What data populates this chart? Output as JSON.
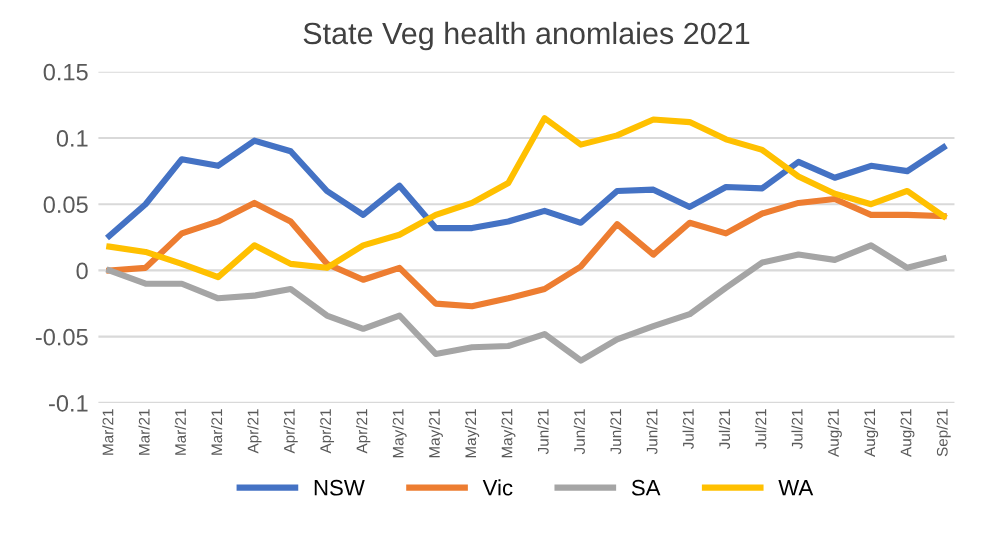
{
  "chart_data": {
    "type": "line",
    "title": "State Veg health anomlaies 2021",
    "categories": [
      "Mar/21",
      "Mar/21",
      "Mar/21",
      "Mar/21",
      "Apr/21",
      "Apr/21",
      "Apr/21",
      "Apr/21",
      "May/21",
      "May/21",
      "May/21",
      "May/21",
      "Jun/21",
      "Jun/21",
      "Jun/21",
      "Jun/21",
      "Jul/21",
      "Jul/21",
      "Jul/21",
      "Jul/21",
      "Aug/21",
      "Aug/21",
      "Aug/21",
      "Sep/21"
    ],
    "series": [
      {
        "name": "NSW",
        "color": "#4472c4",
        "values": [
          0.026,
          0.05,
          0.084,
          0.079,
          0.098,
          0.09,
          0.06,
          0.042,
          0.064,
          0.032,
          0.032,
          0.037,
          0.045,
          0.036,
          0.06,
          0.061,
          0.048,
          0.063,
          0.062,
          0.082,
          0.07,
          0.079,
          0.075,
          0.093
        ]
      },
      {
        "name": "Vic",
        "color": "#ed7d31",
        "values": [
          0.0,
          0.002,
          0.028,
          0.037,
          0.051,
          0.037,
          0.005,
          -0.007,
          0.002,
          -0.025,
          -0.027,
          -0.021,
          -0.014,
          0.003,
          0.035,
          0.012,
          0.036,
          0.028,
          0.043,
          0.051,
          0.054,
          0.042,
          0.042,
          0.041
        ]
      },
      {
        "name": "SA",
        "color": "#a5a5a5",
        "values": [
          0.0,
          -0.01,
          -0.01,
          -0.021,
          -0.019,
          -0.014,
          -0.034,
          -0.044,
          -0.034,
          -0.063,
          -0.058,
          -0.057,
          -0.048,
          -0.068,
          -0.052,
          -0.042,
          -0.033,
          -0.013,
          0.006,
          0.012,
          0.008,
          0.019,
          0.002,
          0.009
        ]
      },
      {
        "name": "WA",
        "color": "#ffc000",
        "values": [
          0.018,
          0.014,
          0.005,
          -0.005,
          0.019,
          0.005,
          0.002,
          0.019,
          0.027,
          0.042,
          0.051,
          0.066,
          0.115,
          0.095,
          0.102,
          0.114,
          0.112,
          0.099,
          0.091,
          0.071,
          0.058,
          0.05,
          0.06,
          0.041
        ]
      }
    ],
    "ylim": [
      -0.1,
      0.15
    ],
    "yticks": [
      -0.1,
      -0.05,
      0,
      0.05,
      0.1,
      0.15
    ],
    "grid": "y",
    "legend": "bottom",
    "marker": "none",
    "line_style": "solid"
  }
}
